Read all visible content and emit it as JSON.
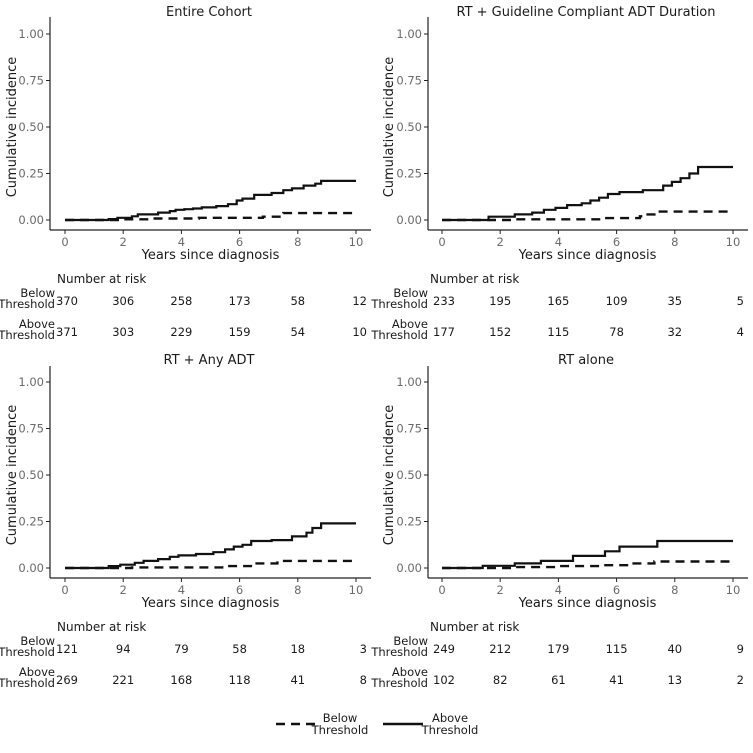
{
  "chart_data": [
    {
      "type": "line",
      "title": "Entire Cohort",
      "xlabel": "Years since diagnosis",
      "ylabel": "Cumulative incidence",
      "xlim": [
        0,
        10
      ],
      "ylim": [
        0,
        1
      ],
      "x_ticks": [
        "0",
        "2",
        "4",
        "6",
        "8",
        "10"
      ],
      "y_ticks": [
        "0.00",
        "0.25",
        "0.50",
        "0.75",
        "1.00"
      ],
      "series": [
        {
          "name": "Below Threshold",
          "style": "dashed",
          "x": [
            0,
            2.0,
            3.0,
            4.6,
            6.8,
            7.5,
            10
          ],
          "y": [
            0,
            0.004,
            0.008,
            0.012,
            0.018,
            0.037,
            0.037
          ]
        },
        {
          "name": "Above Threshold",
          "style": "solid",
          "x": [
            0,
            1.5,
            1.8,
            2.3,
            2.5,
            3.2,
            3.6,
            3.8,
            4.1,
            4.4,
            4.7,
            5.2,
            5.6,
            5.9,
            6.1,
            6.5,
            7.1,
            7.5,
            7.8,
            8.2,
            8.6,
            8.8,
            10
          ],
          "y": [
            0,
            0.005,
            0.012,
            0.02,
            0.03,
            0.04,
            0.048,
            0.055,
            0.058,
            0.062,
            0.068,
            0.075,
            0.085,
            0.105,
            0.115,
            0.135,
            0.145,
            0.16,
            0.17,
            0.185,
            0.195,
            0.21,
            0.21
          ]
        }
      ],
      "risk_table": {
        "header": "Number at risk",
        "rows": [
          {
            "label_lines": [
              "Below",
              "Threshold"
            ],
            "values": [
              "370",
              "306",
              "258",
              "173",
              "58",
              "12"
            ]
          },
          {
            "label_lines": [
              "Above",
              "Threshold"
            ],
            "values": [
              "371",
              "303",
              "229",
              "159",
              "54",
              "10"
            ]
          }
        ]
      }
    },
    {
      "type": "line",
      "title": "RT + Guideline Compliant ADT Duration",
      "xlabel": "Years since diagnosis",
      "ylabel": "Cumulative incidence",
      "xlim": [
        0,
        10
      ],
      "ylim": [
        0,
        1
      ],
      "x_ticks": [
        "0",
        "2",
        "4",
        "6",
        "8",
        "10"
      ],
      "y_ticks": [
        "0.00",
        "0.25",
        "0.50",
        "0.75",
        "1.00"
      ],
      "series": [
        {
          "name": "Below Threshold",
          "style": "dashed",
          "x": [
            0,
            2.5,
            5.5,
            6.8,
            7.0,
            7.3,
            10
          ],
          "y": [
            0,
            0.004,
            0.01,
            0.02,
            0.03,
            0.045,
            0.045
          ]
        },
        {
          "name": "Above Threshold",
          "style": "solid",
          "x": [
            0,
            1.6,
            2.5,
            3.1,
            3.5,
            3.9,
            4.3,
            4.8,
            5.1,
            5.4,
            5.7,
            6.1,
            6.9,
            7.6,
            7.9,
            8.2,
            8.5,
            8.8,
            10
          ],
          "y": [
            0,
            0.018,
            0.03,
            0.04,
            0.055,
            0.065,
            0.08,
            0.09,
            0.105,
            0.12,
            0.14,
            0.15,
            0.16,
            0.185,
            0.205,
            0.225,
            0.25,
            0.285,
            0.285
          ]
        }
      ],
      "risk_table": {
        "header": "Number at risk",
        "rows": [
          {
            "label_lines": [
              "Below",
              "Threshold"
            ],
            "values": [
              "233",
              "195",
              "165",
              "109",
              "35",
              "5"
            ]
          },
          {
            "label_lines": [
              "Above",
              "Threshold"
            ],
            "values": [
              "177",
              "152",
              "115",
              "78",
              "32",
              "4"
            ]
          }
        ]
      }
    },
    {
      "type": "line",
      "title": "RT + Any ADT",
      "xlabel": "Years since diagnosis",
      "ylabel": "Cumulative incidence",
      "xlim": [
        0,
        10
      ],
      "ylim": [
        0,
        1
      ],
      "x_ticks": [
        "0",
        "2",
        "4",
        "6",
        "8",
        "10"
      ],
      "y_ticks": [
        "0.00",
        "0.25",
        "0.50",
        "0.75",
        "1.00"
      ],
      "series": [
        {
          "name": "Below Threshold",
          "style": "dashed",
          "x": [
            0,
            2.3,
            5.5,
            6.5,
            7.3,
            10
          ],
          "y": [
            0,
            0.003,
            0.01,
            0.025,
            0.038,
            0.038
          ]
        },
        {
          "name": "Above Threshold",
          "style": "solid",
          "x": [
            0,
            1.5,
            1.9,
            2.4,
            2.7,
            3.2,
            3.6,
            3.9,
            4.5,
            5.1,
            5.5,
            5.8,
            6.1,
            6.4,
            7.1,
            7.8,
            8.3,
            8.5,
            8.8,
            10
          ],
          "y": [
            0,
            0.01,
            0.018,
            0.028,
            0.038,
            0.048,
            0.06,
            0.068,
            0.075,
            0.085,
            0.1,
            0.115,
            0.125,
            0.145,
            0.15,
            0.17,
            0.19,
            0.215,
            0.24,
            0.24
          ]
        }
      ],
      "risk_table": {
        "header": "Number at risk",
        "rows": [
          {
            "label_lines": [
              "Below",
              "Threshold"
            ],
            "values": [
              "121",
              "94",
              "79",
              "58",
              "18",
              "3"
            ]
          },
          {
            "label_lines": [
              "Above",
              "Threshold"
            ],
            "values": [
              "269",
              "221",
              "168",
              "118",
              "41",
              "8"
            ]
          }
        ]
      }
    },
    {
      "type": "line",
      "title": "RT alone",
      "xlabel": "Years since diagnosis",
      "ylabel": "Cumulative incidence",
      "xlim": [
        0,
        10
      ],
      "ylim": [
        0,
        1
      ],
      "x_ticks": [
        "0",
        "2",
        "4",
        "6",
        "8",
        "10"
      ],
      "y_ticks": [
        "0.00",
        "0.25",
        "0.50",
        "0.75",
        "1.00"
      ],
      "series": [
        {
          "name": "Below Threshold",
          "style": "dashed",
          "x": [
            0,
            2.4,
            4.0,
            5.5,
            6.5,
            7.3,
            10
          ],
          "y": [
            0,
            0.005,
            0.01,
            0.015,
            0.025,
            0.035,
            0.035
          ]
        },
        {
          "name": "Above Threshold",
          "style": "solid",
          "x": [
            0,
            1.4,
            2.5,
            3.4,
            4.5,
            5.6,
            6.1,
            7.4,
            10
          ],
          "y": [
            0,
            0.012,
            0.025,
            0.038,
            0.065,
            0.09,
            0.115,
            0.145,
            0.145
          ]
        }
      ],
      "risk_table": {
        "header": "Number at risk",
        "rows": [
          {
            "label_lines": [
              "Below",
              "Threshold"
            ],
            "values": [
              "249",
              "212",
              "179",
              "115",
              "40",
              "9"
            ]
          },
          {
            "label_lines": [
              "Above",
              "Threshold"
            ],
            "values": [
              "102",
              "82",
              "61",
              "41",
              "13",
              "2"
            ]
          }
        ]
      }
    }
  ],
  "legend": {
    "placement": "bottom-center",
    "items": [
      {
        "label_lines": [
          "Below",
          "Threshold"
        ],
        "style": "dashed"
      },
      {
        "label_lines": [
          "Above",
          "Threshold"
        ],
        "style": "solid"
      }
    ]
  },
  "colors": {
    "line": "#111111",
    "axis": "#222222",
    "tick_text": "#6a6a6a"
  }
}
